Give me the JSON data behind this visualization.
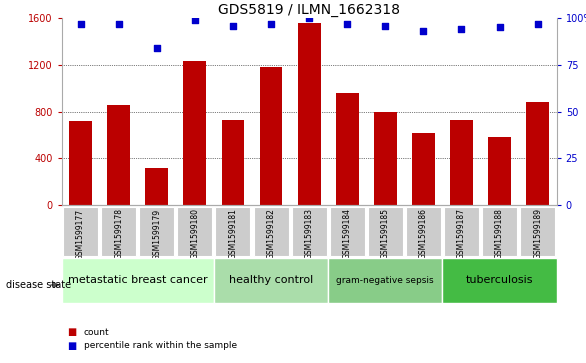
{
  "title": "GDS5819 / ILMN_1662318",
  "samples": [
    "GSM1599177",
    "GSM1599178",
    "GSM1599179",
    "GSM1599180",
    "GSM1599181",
    "GSM1599182",
    "GSM1599183",
    "GSM1599184",
    "GSM1599185",
    "GSM1599186",
    "GSM1599187",
    "GSM1599188",
    "GSM1599189"
  ],
  "counts": [
    720,
    860,
    320,
    1230,
    730,
    1180,
    1560,
    960,
    800,
    620,
    730,
    580,
    880
  ],
  "percentiles": [
    97,
    97,
    84,
    99,
    96,
    97,
    100,
    97,
    96,
    93,
    94,
    95,
    97
  ],
  "bar_color": "#bb0000",
  "dot_color": "#0000cc",
  "ylim_left": [
    0,
    1600
  ],
  "ylim_right": [
    0,
    100
  ],
  "yticks_left": [
    0,
    400,
    800,
    1200,
    1600
  ],
  "yticks_right": [
    0,
    25,
    50,
    75,
    100
  ],
  "groups": [
    {
      "label": "metastatic breast cancer",
      "start": 0,
      "end": 4,
      "color": "#ccffcc"
    },
    {
      "label": "healthy control",
      "start": 4,
      "end": 7,
      "color": "#aaddaa"
    },
    {
      "label": "gram-negative sepsis",
      "start": 7,
      "end": 10,
      "color": "#88cc88"
    },
    {
      "label": "tuberculosis",
      "start": 10,
      "end": 13,
      "color": "#44bb44"
    }
  ],
  "disease_state_label": "disease state",
  "legend_count_label": "count",
  "legend_percentile_label": "percentile rank within the sample",
  "tick_bg_color": "#cccccc",
  "grid_color": "#000000",
  "title_fontsize": 10,
  "tick_fontsize": 7,
  "sample_fontsize": 5.5,
  "group_fontsize": 8,
  "gram_fontsize": 6.5
}
